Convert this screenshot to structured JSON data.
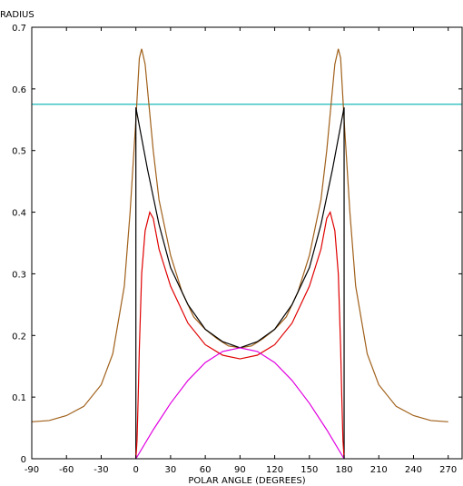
{
  "chart_data": {
    "type": "line",
    "ylabel": "RADIUS",
    "xlabel": "POLAR ANGLE (DEGREES)",
    "xlim": [
      -90,
      282
    ],
    "ylim": [
      0,
      0.7
    ],
    "xticks": [
      -90,
      -60,
      -30,
      0,
      30,
      60,
      90,
      120,
      150,
      180,
      210,
      240,
      270
    ],
    "yticks": [
      0,
      0.1,
      0.2,
      0.3,
      0.4,
      0.5,
      0.6,
      0.7
    ],
    "series": [
      {
        "color": "#00b0b0",
        "x": [
          -90,
          282
        ],
        "values": [
          0.575,
          0.575
        ]
      },
      {
        "color": "#a0601a",
        "x": [
          -90,
          -75,
          -60,
          -45,
          -30,
          -20,
          -10,
          -5,
          0,
          3,
          5,
          8,
          10,
          15,
          20,
          30,
          40,
          50,
          60,
          70,
          80,
          90,
          100,
          110,
          120,
          130,
          140,
          150,
          160,
          165,
          170,
          172,
          175,
          177,
          180,
          185,
          190,
          200,
          210,
          225,
          240,
          255,
          270
        ],
        "values": [
          0.06,
          0.062,
          0.07,
          0.085,
          0.12,
          0.17,
          0.28,
          0.4,
          0.55,
          0.65,
          0.665,
          0.64,
          0.6,
          0.5,
          0.42,
          0.33,
          0.27,
          0.23,
          0.21,
          0.195,
          0.183,
          0.18,
          0.183,
          0.195,
          0.21,
          0.23,
          0.27,
          0.33,
          0.42,
          0.5,
          0.6,
          0.64,
          0.665,
          0.65,
          0.55,
          0.4,
          0.28,
          0.17,
          0.12,
          0.085,
          0.07,
          0.062,
          0.06
        ]
      },
      {
        "color": "#000000",
        "x": [
          0,
          0,
          5,
          10,
          20,
          30,
          45,
          60,
          75,
          90,
          105,
          120,
          135,
          150,
          160,
          170,
          175,
          180,
          180
        ],
        "values": [
          0,
          0.57,
          0.52,
          0.47,
          0.38,
          0.31,
          0.25,
          0.21,
          0.19,
          0.18,
          0.19,
          0.21,
          0.25,
          0.31,
          0.38,
          0.47,
          0.52,
          0.57,
          0
        ]
      },
      {
        "color": "#e00000",
        "x": [
          0,
          1,
          2,
          3,
          5,
          8,
          12,
          15,
          20,
          30,
          45,
          60,
          75,
          90,
          105,
          120,
          135,
          150,
          160,
          165,
          168,
          172,
          175,
          177,
          178,
          179,
          180
        ],
        "values": [
          0,
          0.03,
          0.1,
          0.18,
          0.3,
          0.37,
          0.4,
          0.39,
          0.34,
          0.28,
          0.22,
          0.185,
          0.168,
          0.162,
          0.168,
          0.185,
          0.22,
          0.28,
          0.34,
          0.39,
          0.4,
          0.37,
          0.3,
          0.18,
          0.1,
          0.03,
          0
        ]
      },
      {
        "color": "#e000e0",
        "x": [
          0,
          15,
          30,
          45,
          60,
          75,
          90,
          105,
          120,
          135,
          150,
          165,
          180
        ],
        "values": [
          0,
          0.047,
          0.09,
          0.127,
          0.156,
          0.174,
          0.18,
          0.174,
          0.156,
          0.127,
          0.09,
          0.047,
          0
        ]
      }
    ]
  }
}
